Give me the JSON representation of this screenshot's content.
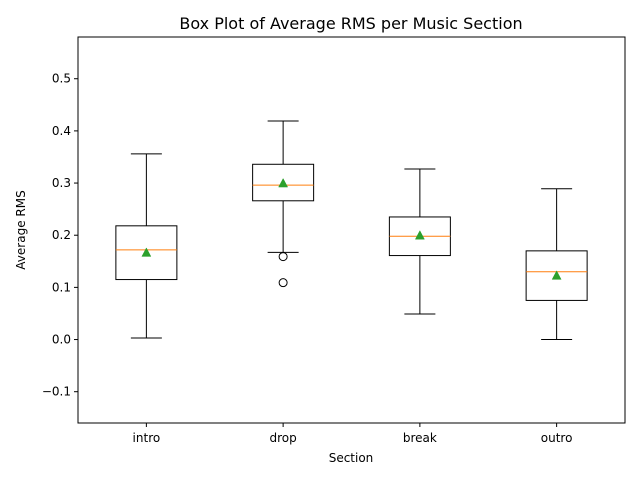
{
  "chart_data": {
    "type": "box",
    "title": "Box Plot of Average RMS per Music Section",
    "xlabel": "Section",
    "ylabel": "Average RMS",
    "ylim": [
      -0.16,
      0.58
    ],
    "yticks": [
      -0.1,
      0.0,
      0.1,
      0.2,
      0.3,
      0.4,
      0.5
    ],
    "ytick_labels": [
      "−0.1",
      "0.0",
      "0.1",
      "0.2",
      "0.3",
      "0.4",
      "0.5"
    ],
    "categories": [
      "intro",
      "drop",
      "break",
      "outro"
    ],
    "boxes": [
      {
        "category": "intro",
        "whisker_low": 0.003,
        "q1": 0.115,
        "median": 0.172,
        "mean": 0.167,
        "q3": 0.218,
        "whisker_high": 0.356,
        "outliers": []
      },
      {
        "category": "drop",
        "whisker_low": 0.167,
        "q1": 0.266,
        "median": 0.296,
        "mean": 0.3,
        "q3": 0.336,
        "whisker_high": 0.419,
        "outliers": [
          0.159,
          0.109
        ]
      },
      {
        "category": "break",
        "whisker_low": 0.049,
        "q1": 0.161,
        "median": 0.198,
        "mean": 0.2,
        "q3": 0.235,
        "whisker_high": 0.327,
        "outliers": []
      },
      {
        "category": "outro",
        "whisker_low": 0.0,
        "q1": 0.075,
        "median": 0.13,
        "mean": 0.123,
        "q3": 0.17,
        "whisker_high": 0.289,
        "outliers": []
      }
    ],
    "grid": false,
    "legend": "none",
    "colors": {
      "box": "#000000",
      "median": "#ff7f0e",
      "mean_marker": "#2ca02c",
      "background": "#ffffff"
    }
  }
}
